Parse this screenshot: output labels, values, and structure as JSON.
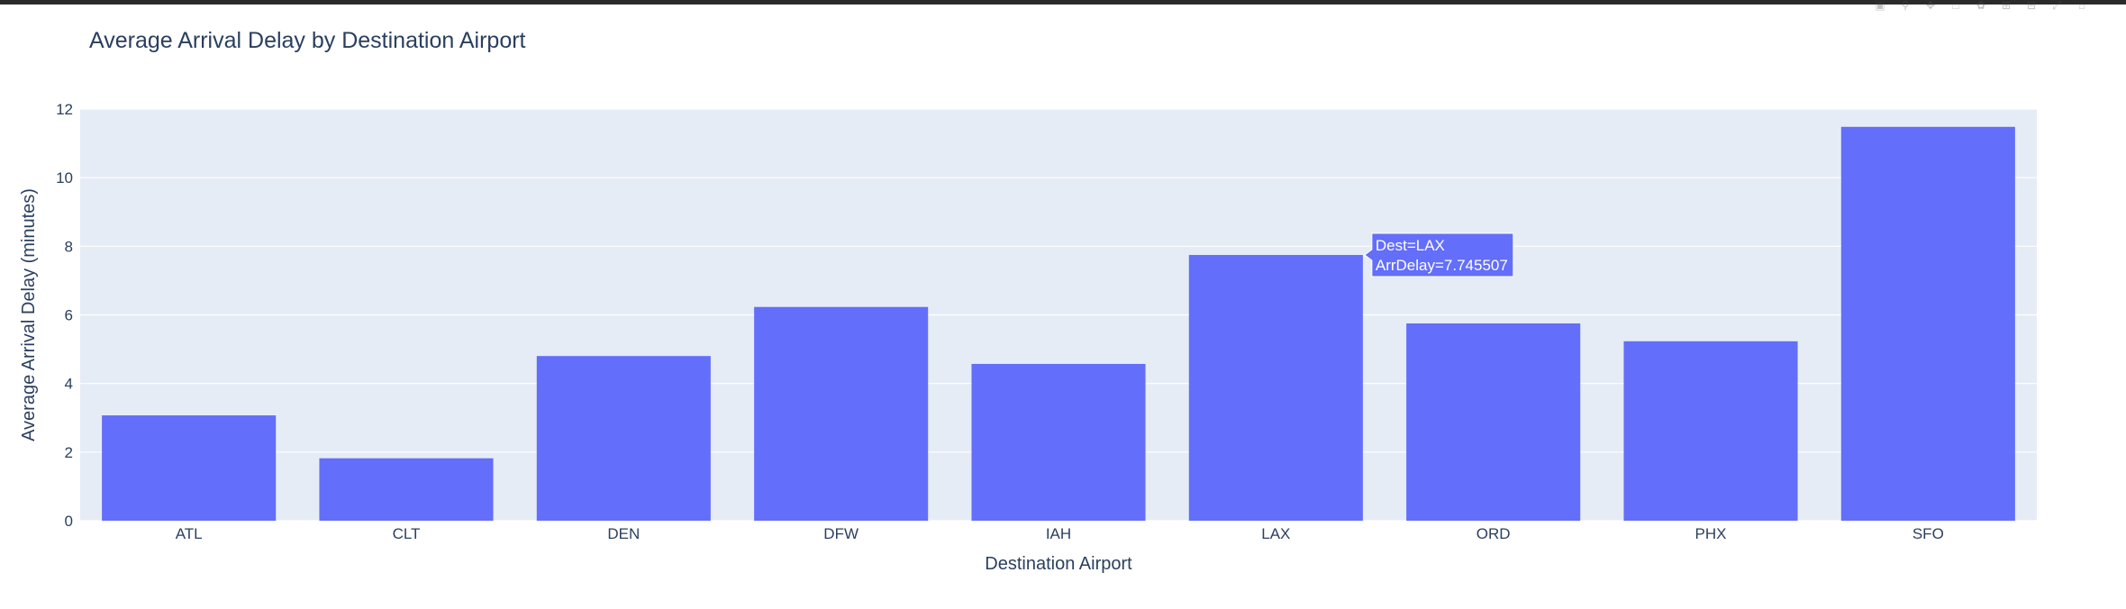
{
  "chart_data": {
    "type": "bar",
    "title": "Average Arrival Delay by Destination Airport",
    "xlabel": "Destination Airport",
    "ylabel": "Average Arrival Delay (minutes)",
    "categories": [
      "ATL",
      "CLT",
      "DEN",
      "DFW",
      "IAH",
      "LAX",
      "ORD",
      "PHX",
      "SFO"
    ],
    "values": [
      3.07,
      1.82,
      4.8,
      6.23,
      4.57,
      7.745507,
      5.75,
      5.23,
      11.48
    ],
    "ylim": [
      0,
      12
    ],
    "yticks": [
      0,
      2,
      4,
      6,
      8,
      10,
      12
    ],
    "grid": true,
    "bar_color": "#636efa",
    "plot_bg": "#e5ecf6",
    "hover": {
      "category": "LAX",
      "line1": "Dest=LAX",
      "line2": "ArrDelay=7.745507"
    }
  },
  "modebar_icons": [
    "camera-icon",
    "zoom-icon",
    "pan-icon",
    "box-select-icon",
    "lasso-icon",
    "zoom-in-icon",
    "zoom-out-icon",
    "autoscale-icon",
    "reset-axes-icon"
  ]
}
